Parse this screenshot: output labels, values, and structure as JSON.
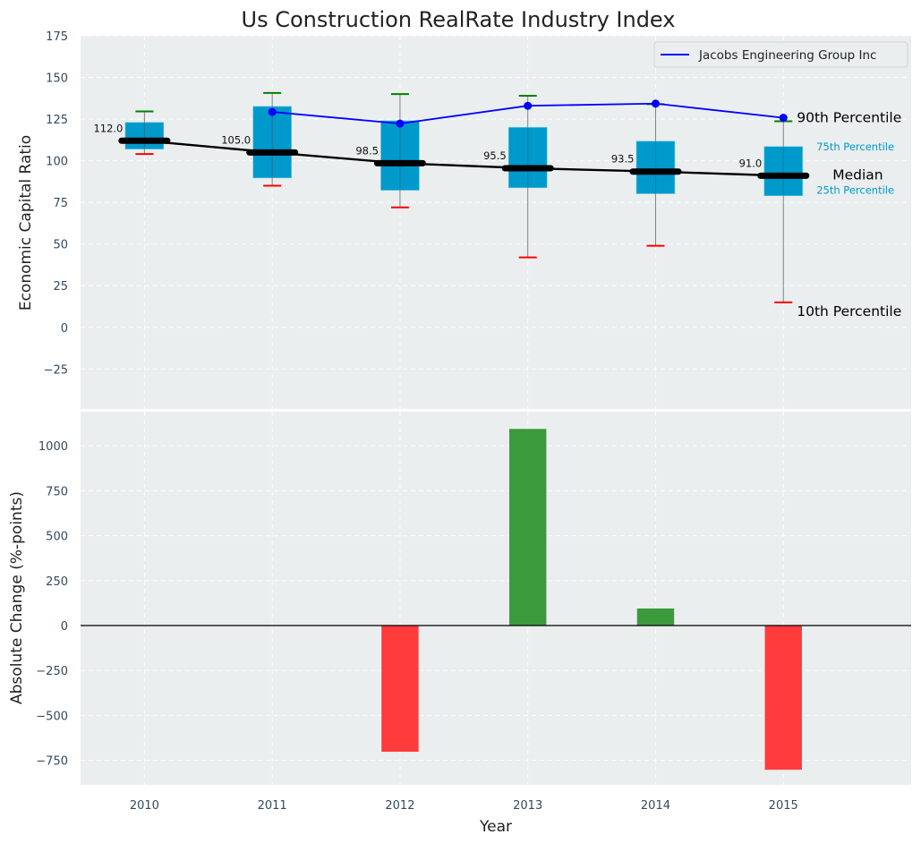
{
  "chart_data": [
    {
      "type": "box",
      "title": "Us Construction RealRate Industry Index",
      "xlabel": "",
      "ylabel": "Economic Capital Ratio",
      "categories": [
        "2010",
        "2011",
        "2012",
        "2013",
        "2014",
        "2015"
      ],
      "ylim": [
        -49,
        175
      ],
      "yticks": [
        -25,
        0,
        25,
        50,
        75,
        100,
        125,
        150,
        175
      ],
      "ytick_labels": [
        "−25",
        "0",
        "25",
        "50",
        "75",
        "100",
        "125",
        "150",
        "175"
      ],
      "grid": true,
      "percentiles": {
        "p10": [
          104,
          85,
          72,
          42,
          49,
          15
        ],
        "p25": [
          107,
          89.7,
          82.3,
          83.8,
          80.2,
          79
        ],
        "median": [
          112.0,
          105.0,
          98.5,
          95.5,
          93.5,
          91.0
        ],
        "p75": [
          123,
          132.6,
          124,
          120,
          111.7,
          108.5
        ],
        "p90": [
          129.6,
          140.7,
          140,
          139,
          134,
          123.7
        ]
      },
      "median_labels": [
        "112.0",
        "105.0",
        "98.5",
        "95.5",
        "93.5",
        "91.0"
      ],
      "series": [
        {
          "name": "Jacobs Engineering Group Inc",
          "color": "#0000ff",
          "x_index": [
            1,
            2,
            3,
            4,
            5
          ],
          "values": [
            129.3,
            122.3,
            133.0,
            134.3,
            125.8
          ]
        }
      ],
      "legend": {
        "position": "top-right",
        "entries": [
          "Jacobs Engineering Group Inc"
        ]
      },
      "annotations": {
        "p90": "90th Percentile",
        "p75": "75th Percentile",
        "median": "Median",
        "p25": "25th Percentile",
        "p10": "10th Percentile"
      },
      "colors": {
        "box": "#0099cc",
        "median": "#000000",
        "p90_cap": "#008000",
        "p10_cap": "#ff0000",
        "whisker": "#808080",
        "background": "#eaeeef"
      }
    },
    {
      "type": "bar",
      "title": "",
      "xlabel": "Year",
      "ylabel": "Absolute Change (%-points)",
      "categories": [
        "2010",
        "2011",
        "2012",
        "2013",
        "2014",
        "2015"
      ],
      "values": [
        0,
        0,
        -702,
        1094,
        95,
        -802
      ],
      "ylim": [
        -886,
        1190
      ],
      "yticks": [
        -750,
        -500,
        -250,
        0,
        250,
        500,
        750,
        1000
      ],
      "ytick_labels": [
        "−750",
        "−500",
        "−250",
        "0",
        "250",
        "500",
        "750",
        "1000"
      ],
      "grid": true,
      "colors": {
        "positive": "#3a9a3c",
        "negative": "#ff3b3b",
        "zero_line": "#000000",
        "background": "#eaeeef"
      }
    }
  ]
}
